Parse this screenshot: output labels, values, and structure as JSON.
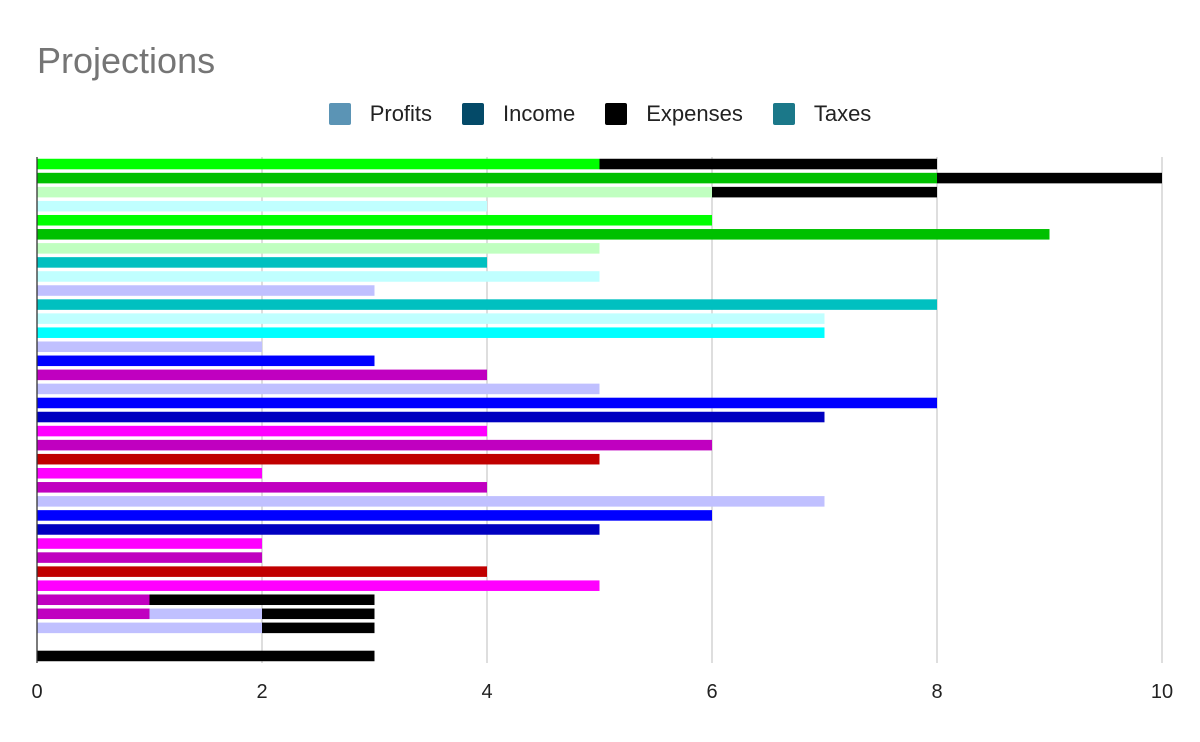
{
  "chart_data": {
    "type": "bar",
    "orientation": "horizontal",
    "stacked": true,
    "title": "Projections",
    "legend": {
      "position": "top",
      "entries": [
        {
          "name": "Profits",
          "color": "#5b94b5"
        },
        {
          "name": "Income",
          "color": "#044a68"
        },
        {
          "name": "Expenses",
          "color": "#000000"
        },
        {
          "name": "Taxes",
          "color": "#1b7889"
        }
      ]
    },
    "x_axis": {
      "range": [
        0,
        10
      ],
      "ticks": [
        "0",
        "2",
        "4",
        "6",
        "8",
        "10"
      ],
      "grid": true
    },
    "bars": [
      {
        "segments": [
          {
            "value": 5,
            "color": "#00ff00"
          },
          {
            "value": 3,
            "color": "#000000"
          }
        ]
      },
      {
        "segments": [
          {
            "value": 8,
            "color": "#00c000"
          },
          {
            "value": 2,
            "color": "#000000"
          }
        ]
      },
      {
        "segments": [
          {
            "value": 6,
            "color": "#c0ffc0"
          },
          {
            "value": 2,
            "color": "#000000"
          }
        ]
      },
      {
        "segments": [
          {
            "value": 4,
            "color": "#c0ffff"
          }
        ]
      },
      {
        "segments": [
          {
            "value": 6,
            "color": "#00ff00"
          }
        ]
      },
      {
        "segments": [
          {
            "value": 9,
            "color": "#00c000"
          }
        ]
      },
      {
        "segments": [
          {
            "value": 5,
            "color": "#c0ffc0"
          }
        ]
      },
      {
        "segments": [
          {
            "value": 4,
            "color": "#00c0c0"
          }
        ]
      },
      {
        "segments": [
          {
            "value": 5,
            "color": "#c0ffff"
          }
        ]
      },
      {
        "segments": [
          {
            "value": 3,
            "color": "#c0c0ff"
          }
        ]
      },
      {
        "segments": [
          {
            "value": 8,
            "color": "#00c0c0"
          }
        ]
      },
      {
        "segments": [
          {
            "value": 7,
            "color": "#c0ffff"
          }
        ]
      },
      {
        "segments": [
          {
            "value": 7,
            "color": "#00ffff"
          }
        ]
      },
      {
        "segments": [
          {
            "value": 2,
            "color": "#c0c0ff"
          }
        ]
      },
      {
        "segments": [
          {
            "value": 3,
            "color": "#0000ff"
          }
        ]
      },
      {
        "segments": [
          {
            "value": 4,
            "color": "#c000c0"
          }
        ]
      },
      {
        "segments": [
          {
            "value": 5,
            "color": "#c0c0ff"
          }
        ]
      },
      {
        "segments": [
          {
            "value": 8,
            "color": "#0000ff"
          }
        ]
      },
      {
        "segments": [
          {
            "value": 7,
            "color": "#0000c0"
          }
        ]
      },
      {
        "segments": [
          {
            "value": 4,
            "color": "#ff00ff"
          }
        ]
      },
      {
        "segments": [
          {
            "value": 6,
            "color": "#c000c0"
          }
        ]
      },
      {
        "segments": [
          {
            "value": 5,
            "color": "#c00000"
          }
        ]
      },
      {
        "segments": [
          {
            "value": 2,
            "color": "#ff00ff"
          }
        ]
      },
      {
        "segments": [
          {
            "value": 4,
            "color": "#c000c0"
          }
        ]
      },
      {
        "segments": [
          {
            "value": 7,
            "color": "#c0c0ff"
          }
        ]
      },
      {
        "segments": [
          {
            "value": 6,
            "color": "#0000ff"
          }
        ]
      },
      {
        "segments": [
          {
            "value": 5,
            "color": "#0000c0"
          }
        ]
      },
      {
        "segments": [
          {
            "value": 2,
            "color": "#ff00ff"
          }
        ]
      },
      {
        "segments": [
          {
            "value": 2,
            "color": "#c000c0"
          }
        ]
      },
      {
        "segments": [
          {
            "value": 4,
            "color": "#c00000"
          }
        ]
      },
      {
        "segments": [
          {
            "value": 5,
            "color": "#ff00ff"
          }
        ]
      },
      {
        "segments": [
          {
            "value": 1,
            "color": "#c000c0"
          },
          {
            "value": 2,
            "color": "#000000"
          }
        ]
      },
      {
        "segments": [
          {
            "value": 1,
            "color": "#c000c0"
          },
          {
            "value": 1,
            "color": "#c0c0ff"
          },
          {
            "value": 1,
            "color": "#000000"
          }
        ]
      },
      {
        "segments": [
          {
            "value": 2,
            "color": "#c0c0ff"
          },
          {
            "value": 1,
            "color": "#000000"
          }
        ]
      },
      {
        "segments": []
      },
      {
        "segments": [
          {
            "value": 3,
            "color": "#000000"
          }
        ]
      }
    ]
  }
}
